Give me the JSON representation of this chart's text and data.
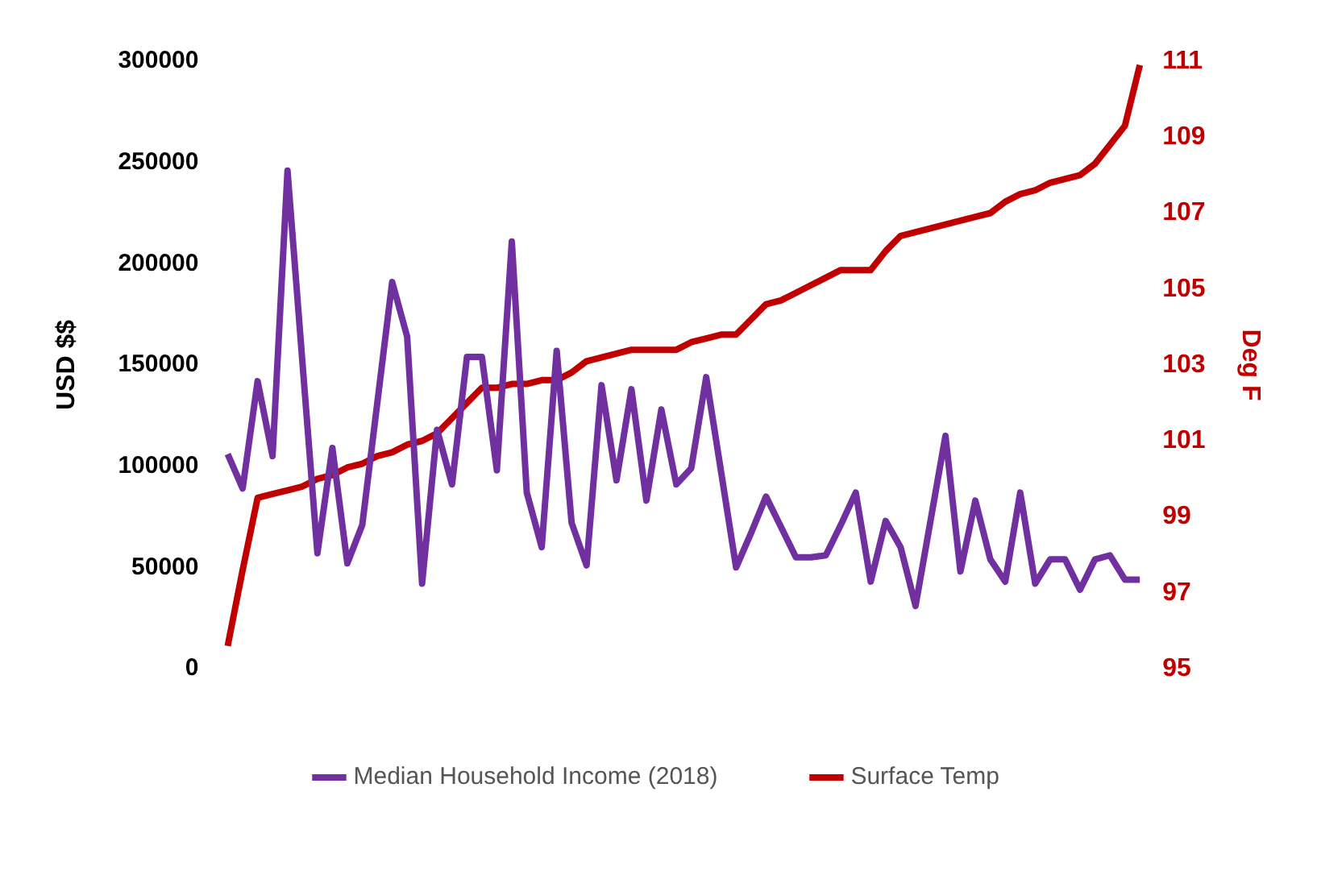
{
  "chart_data": {
    "type": "line",
    "categories": [
      null,
      null,
      null,
      null,
      null,
      null,
      null,
      null,
      null,
      null,
      null,
      null,
      null,
      null,
      null,
      null,
      null,
      null,
      null,
      null,
      null,
      null,
      null,
      null,
      null,
      null,
      null,
      null,
      null,
      null,
      null,
      null,
      null,
      null,
      null,
      null,
      null,
      null,
      null,
      null,
      null,
      null,
      null,
      null,
      null,
      null,
      null,
      null,
      null,
      null,
      null,
      null,
      null,
      null,
      null,
      null,
      null,
      null,
      null,
      null,
      null,
      null
    ],
    "ylabel": "USD $$",
    "y2label": "Deg F",
    "ylim": [
      0,
      300000
    ],
    "yticks": [
      0,
      50000,
      100000,
      150000,
      200000,
      250000,
      300000
    ],
    "y2lim": [
      95,
      111
    ],
    "y2ticks": [
      95,
      97,
      99,
      101,
      103,
      105,
      107,
      109,
      111
    ],
    "grid": false,
    "legend": "bottom",
    "marker": "none",
    "line_style": "solid",
    "series": [
      {
        "name": "Median Household Income (2018)",
        "color": "#7030a0",
        "values": [
          106000,
          89000,
          142000,
          105000,
          246000,
          151000,
          57000,
          109000,
          52000,
          71000,
          131000,
          191000,
          164000,
          42000,
          118000,
          91000,
          154000,
          154000,
          98000,
          211000,
          87000,
          60000,
          157000,
          72000,
          51000,
          140000,
          93000,
          138000,
          83000,
          128000,
          91000,
          99000,
          144000,
          97000,
          50000,
          67000,
          85000,
          70000,
          55000,
          55000,
          56000,
          71000,
          87000,
          43000,
          73000,
          60000,
          31000,
          73000,
          115000,
          48000,
          83000,
          54000,
          43000,
          87000,
          42000,
          54000,
          54000,
          39000,
          54000,
          56000,
          44000,
          44000
        ]
      },
      {
        "name": "Surface Temp",
        "color": "#c00000",
        "axis": "y2",
        "values": [
          95.6,
          97.6,
          99.5,
          99.6,
          99.7,
          99.8,
          100.0,
          100.1,
          100.3,
          100.4,
          100.6,
          100.7,
          100.9,
          101.0,
          101.2,
          101.6,
          102.0,
          102.4,
          102.4,
          102.5,
          102.5,
          102.6,
          102.6,
          102.8,
          103.1,
          103.2,
          103.3,
          103.4,
          103.4,
          103.4,
          103.4,
          103.6,
          103.7,
          103.8,
          103.8,
          104.2,
          104.6,
          104.7,
          104.9,
          105.1,
          105.3,
          105.5,
          105.5,
          105.5,
          106.0,
          106.4,
          106.5,
          106.6,
          106.7,
          106.8,
          106.9,
          107.0,
          107.3,
          107.5,
          107.6,
          107.8,
          107.9,
          108.0,
          108.3,
          108.8,
          109.3,
          110.9
        ]
      }
    ]
  }
}
